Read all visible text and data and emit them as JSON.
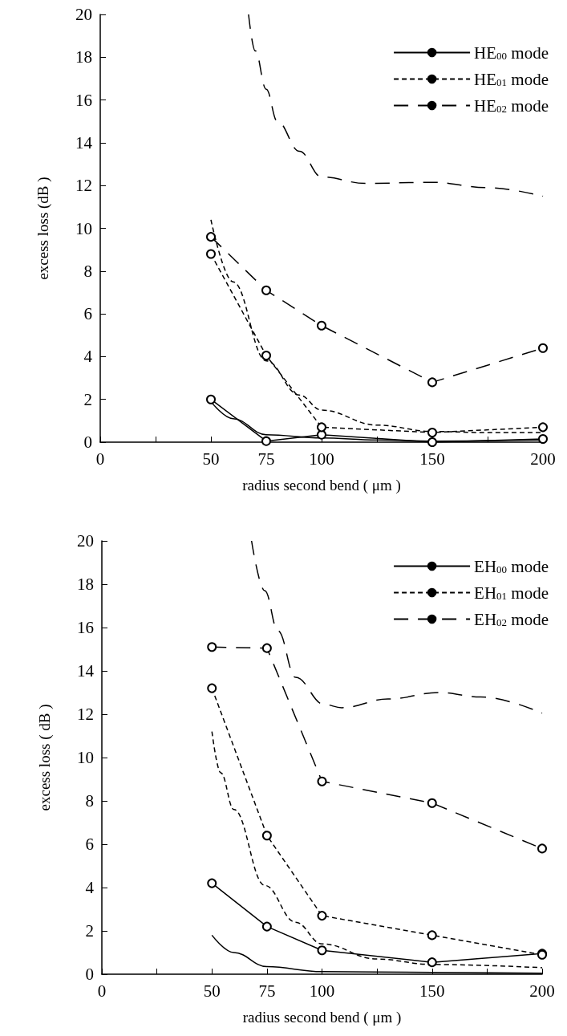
{
  "chart_data": [
    {
      "type": "line",
      "xlabel": "radius second bend ( μm )",
      "ylabel": "excess loss (dB )",
      "xlim": [
        0,
        200
      ],
      "xticks": [
        0,
        {
          "value": 25,
          "label": null
        },
        50,
        75,
        100,
        {
          "value": 125,
          "label": null
        },
        150,
        {
          "value": 175,
          "label": null
        },
        200
      ],
      "ylim": [
        0,
        20
      ],
      "yticks": [
        0,
        2,
        4,
        6,
        8,
        10,
        12,
        14,
        16,
        18,
        20
      ],
      "legend": "top right",
      "series": [
        {
          "name": "HE$_{00}$ mode",
          "color": "#000000",
          "line_style": "solid",
          "marker": "none",
          "x": [
            50,
            60,
            75,
            100,
            125,
            150,
            200
          ],
          "values": [
            1.9,
            1.1,
            0.35,
            0.2,
            0.1,
            0.05,
            0.1
          ]
        },
        {
          "name": "HE$_{01}$ mode",
          "color": "#000000",
          "line_style": "dashed",
          "marker": "none",
          "x": [
            50,
            60,
            75,
            90,
            100,
            125,
            150,
            175,
            200
          ],
          "values": [
            10.4,
            7.5,
            3.8,
            2.2,
            1.5,
            0.8,
            0.5,
            0.45,
            0.45
          ]
        },
        {
          "name": "HE$_{02}$ mode",
          "color": "#000000",
          "line_style": "dashed",
          "marker": "none",
          "x": [
            67,
            70,
            75,
            80,
            90,
            100,
            120,
            150,
            175,
            200
          ],
          "values": [
            20,
            18.3,
            16.5,
            15,
            13.6,
            12.4,
            12.1,
            12.15,
            11.9,
            11.5
          ]
        },
        {
          "color": "#000000",
          "line_style": "solid",
          "marker": "circle",
          "x": [
            50,
            75,
            100,
            150,
            200
          ],
          "values": [
            2.0,
            0.05,
            0.35,
            0.0,
            0.15
          ]
        },
        {
          "color": "#000000",
          "line_style": "dashed",
          "marker": "circle",
          "x": [
            50,
            75,
            100,
            150,
            200
          ],
          "values": [
            8.8,
            4.05,
            0.7,
            0.45,
            0.7
          ]
        },
        {
          "color": "#000000",
          "line_style": "dashed",
          "marker": "circle",
          "x": [
            50,
            75,
            100,
            150,
            200
          ],
          "values": [
            9.6,
            7.1,
            5.45,
            2.8,
            4.4
          ]
        }
      ]
    },
    {
      "type": "line",
      "xlabel": "radius second bend ( μm )",
      "ylabel": "excess loss ( dB )",
      "xlim": [
        0,
        200
      ],
      "xticks": [
        0,
        {
          "value": 25,
          "label": null
        },
        50,
        75,
        100,
        {
          "value": 125,
          "label": null
        },
        150,
        {
          "value": 175,
          "label": null
        },
        200
      ],
      "ylim": [
        0,
        20
      ],
      "yticks": [
        0,
        2,
        4,
        6,
        8,
        10,
        12,
        14,
        16,
        18,
        20
      ],
      "legend": "top right",
      "series": [
        {
          "name": "EH$_{00}$ mode",
          "color": "#000000",
          "line_style": "solid",
          "marker": "none",
          "x": [
            50,
            60,
            75,
            100,
            150,
            200
          ],
          "values": [
            1.8,
            1.0,
            0.35,
            0.12,
            0.08,
            0.05
          ]
        },
        {
          "name": "EH$_{01}$ mode",
          "color": "#000000",
          "line_style": "dashed",
          "marker": "none",
          "x": [
            50,
            54,
            60,
            74,
            88,
            100,
            125,
            150,
            200
          ],
          "values": [
            11.2,
            9.3,
            7.6,
            4.1,
            2.4,
            1.4,
            0.7,
            0.45,
            0.3
          ]
        },
        {
          "name": "EH$_{02}$ mode",
          "color": "#000000",
          "line_style": "dashed",
          "marker": "none",
          "x": [
            68,
            74,
            80,
            88,
            101,
            109,
            130,
            153,
            172,
            200
          ],
          "values": [
            20,
            17.7,
            15.85,
            13.7,
            12.45,
            12.3,
            12.7,
            13.0,
            12.8,
            12.05
          ]
        },
        {
          "color": "#000000",
          "line_style": "solid",
          "marker": "circle",
          "x": [
            50,
            75,
            100,
            150,
            200
          ],
          "values": [
            4.2,
            2.2,
            1.1,
            0.55,
            0.95
          ]
        },
        {
          "color": "#000000",
          "line_style": "dashed",
          "marker": "circle",
          "x": [
            50,
            75,
            100,
            150,
            200
          ],
          "values": [
            13.2,
            6.4,
            2.7,
            1.8,
            0.9
          ]
        },
        {
          "color": "#000000",
          "line_style": "dashed",
          "marker": "circle",
          "x": [
            50,
            75,
            100,
            150,
            200
          ],
          "values": [
            15.1,
            15.05,
            8.9,
            7.9,
            5.8
          ]
        }
      ]
    }
  ]
}
